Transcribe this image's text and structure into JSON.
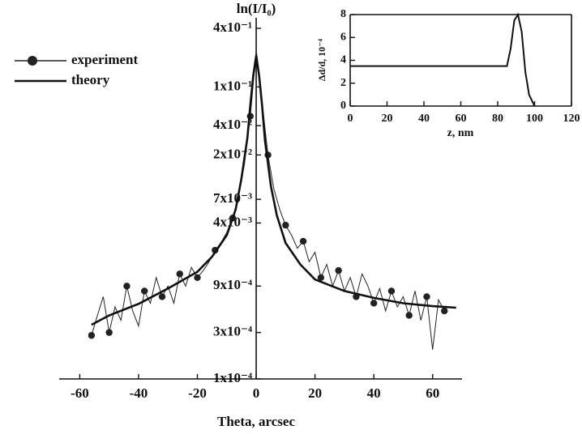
{
  "chart_data": [
    {
      "type": "line",
      "y_label": "ln(I/I₀)",
      "x_label": "Theta, arcsec",
      "yscale": "log",
      "xlim": [
        -67,
        70
      ],
      "xticks": [
        -60,
        -40,
        -20,
        0,
        20,
        40,
        60
      ],
      "ylim": [
        0.0001,
        0.4
      ],
      "yticks": [
        {
          "value": 0.4,
          "label": "4x10⁻¹"
        },
        {
          "value": 0.1,
          "label": "1x10⁻¹"
        },
        {
          "value": 0.04,
          "label": "4x10⁻²"
        },
        {
          "value": 0.02,
          "label": "2x10⁻²"
        },
        {
          "value": 0.007,
          "label": "7x10⁻³"
        },
        {
          "value": 0.004,
          "label": "4x10⁻³"
        },
        {
          "value": 0.0009,
          "label": "9x10⁻⁴"
        },
        {
          "value": 0.0003,
          "label": "3x10⁻⁴"
        },
        {
          "value": 0.0001,
          "label": "1x10⁻⁴"
        }
      ],
      "legend": "top-left",
      "series": [
        {
          "name": "experiment",
          "color": "#222",
          "marker": "circle",
          "x": [
            -56,
            -54,
            -52,
            -50,
            -48,
            -46,
            -44,
            -42,
            -40,
            -38,
            -36,
            -34,
            -32,
            -30,
            -28,
            -26,
            -24,
            -22,
            -20,
            -18,
            -16,
            -14,
            -12,
            -10,
            -8,
            -6,
            -4,
            -2,
            0,
            2,
            4,
            6,
            8,
            10,
            12,
            14,
            16,
            18,
            20,
            22,
            24,
            26,
            28,
            30,
            32,
            34,
            36,
            38,
            40,
            42,
            44,
            46,
            48,
            50,
            52,
            54,
            56,
            58,
            60,
            62,
            64
          ],
          "values": [
            0.00028,
            0.00045,
            0.0007,
            0.0003,
            0.00055,
            0.0004,
            0.0009,
            0.0005,
            0.00035,
            0.0008,
            0.0006,
            0.0011,
            0.0007,
            0.0009,
            0.0006,
            0.0012,
            0.0009,
            0.0014,
            0.0011,
            0.0013,
            0.0016,
            0.0021,
            0.0025,
            0.0032,
            0.0045,
            0.0075,
            0.016,
            0.05,
            0.24,
            0.07,
            0.02,
            0.009,
            0.0055,
            0.0038,
            0.003,
            0.0022,
            0.0026,
            0.0016,
            0.002,
            0.0011,
            0.0015,
            0.0009,
            0.0013,
            0.0008,
            0.0011,
            0.0007,
            0.0012,
            0.0009,
            0.0006,
            0.00085,
            0.0005,
            0.0008,
            0.00055,
            0.0007,
            0.00045,
            0.0008,
            0.0004,
            0.0007,
            0.0002,
            0.00065,
            0.0005
          ]
        },
        {
          "name": "theory",
          "color": "#111",
          "x": [
            -56,
            -50,
            -40,
            -30,
            -20,
            -15,
            -10,
            -7,
            -5,
            -3,
            -2,
            -1,
            0,
            1,
            2,
            3,
            5,
            7,
            10,
            15,
            20,
            30,
            40,
            50,
            60,
            68
          ],
          "values": [
            0.00036,
            0.00045,
            0.00059,
            0.00085,
            0.00126,
            0.0018,
            0.003,
            0.0055,
            0.0115,
            0.03,
            0.065,
            0.13,
            0.21,
            0.13,
            0.065,
            0.028,
            0.0096,
            0.0048,
            0.0025,
            0.0015,
            0.00105,
            0.0008,
            0.00068,
            0.0006,
            0.00056,
            0.00054
          ]
        }
      ]
    },
    {
      "type": "line",
      "y_label": "Δd/d, 10⁻⁴",
      "x_label": "z, nm",
      "xlim": [
        0,
        120
      ],
      "xticks": [
        0,
        20,
        40,
        60,
        80,
        100,
        120
      ],
      "ylim": [
        0,
        8
      ],
      "yticks": [
        0,
        2,
        4,
        6,
        8
      ],
      "x": [
        0,
        85,
        87,
        89,
        91,
        93,
        95,
        97,
        100
      ],
      "values": [
        3.5,
        3.5,
        5,
        7.5,
        8,
        6.5,
        3,
        1,
        0
      ],
      "color": "#111"
    }
  ]
}
